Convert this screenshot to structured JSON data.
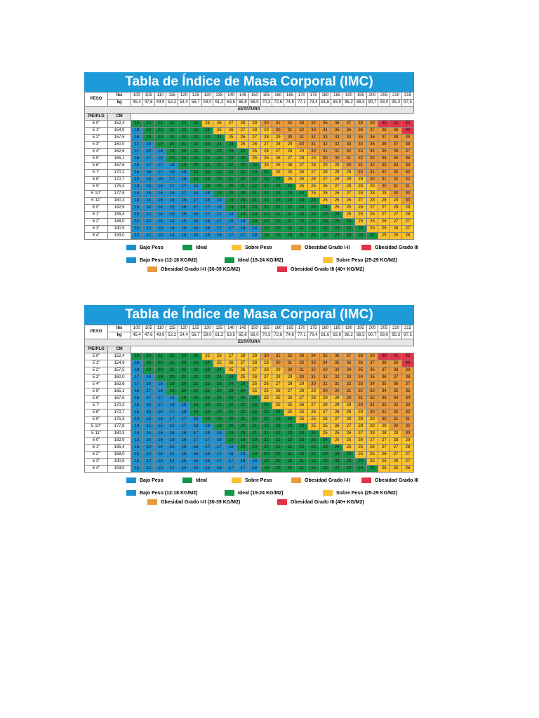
{
  "title": "Tabla de Índice de Masa Corporal (IMC)",
  "peso_label": "PESO",
  "lbs_label": "lbs",
  "kg_label": "kg",
  "estatura_label": "ESTATURA",
  "pie_label": "PIE/PLG",
  "cm_label": "CM",
  "lbs": [
    "100",
    "105",
    "110",
    "115",
    "120",
    "125",
    "130",
    "135",
    "140",
    "145",
    "150",
    "155",
    "160",
    "165",
    "170",
    "175",
    "180",
    "185",
    "190",
    "195",
    "200",
    "205",
    "210",
    "215"
  ],
  "kg": [
    "45,4",
    "47,6",
    "49,9",
    "52,2",
    "54,4",
    "56,7",
    "59,0",
    "61,2",
    "63,5",
    "65,8",
    "68,0",
    "70,3",
    "72,6",
    "74,8",
    "77,1",
    "79,4",
    "81,6",
    "83,9",
    "86,2",
    "88,5",
    "90,7",
    "93,0",
    "95,3",
    "97,5"
  ],
  "rows": [
    {
      "pie": "5´0\"",
      "cm": "152,4",
      "values": [
        19,
        20,
        21,
        22,
        23,
        24,
        25,
        26,
        27,
        28,
        29,
        30,
        31,
        32,
        33,
        34,
        35,
        36,
        37,
        38,
        39,
        40,
        41,
        42
      ]
    },
    {
      "pie": "5´1\"",
      "cm": "154,9",
      "values": [
        18,
        19,
        20,
        21,
        22,
        23,
        24,
        25,
        26,
        27,
        28,
        29,
        30,
        31,
        32,
        33,
        34,
        35,
        36,
        36,
        37,
        38,
        39,
        40
      ]
    },
    {
      "pie": "5´2\"",
      "cm": "157,5",
      "values": [
        18,
        19,
        20,
        21,
        22,
        22,
        23,
        24,
        25,
        26,
        27,
        28,
        29,
        30,
        31,
        32,
        33,
        33,
        34,
        35,
        36,
        37,
        38,
        39
      ]
    },
    {
      "pie": "5´3\"",
      "cm": "160,0",
      "values": [
        17,
        18,
        19,
        20,
        21,
        22,
        23,
        24,
        24,
        25,
        26,
        27,
        28,
        29,
        30,
        31,
        32,
        32,
        33,
        34,
        35,
        36,
        37,
        38
      ]
    },
    {
      "pie": "5´4\"",
      "cm": "162,6",
      "values": [
        17,
        18,
        18,
        19,
        20,
        21,
        22,
        23,
        24,
        24,
        25,
        26,
        27,
        28,
        29,
        30,
        31,
        31,
        32,
        33,
        34,
        35,
        36,
        37
      ]
    },
    {
      "pie": "5´5\"",
      "cm": "165,1",
      "values": [
        16,
        17,
        18,
        19,
        20,
        20,
        21,
        22,
        23,
        24,
        25,
        25,
        26,
        27,
        28,
        29,
        30,
        30,
        31,
        32,
        33,
        34,
        35,
        35
      ]
    },
    {
      "pie": "5´6\"",
      "cm": "167,6",
      "values": [
        16,
        17,
        17,
        18,
        19,
        20,
        21,
        21,
        22,
        23,
        24,
        25,
        25,
        26,
        27,
        28,
        29,
        29,
        30,
        31,
        32,
        33,
        34,
        34
      ]
    },
    {
      "pie": "5´7\"",
      "cm": "170,2",
      "values": [
        15,
        16,
        17,
        18,
        18,
        19,
        20,
        21,
        22,
        22,
        23,
        24,
        25,
        25,
        26,
        27,
        28,
        29,
        29,
        30,
        31,
        32,
        32,
        33
      ]
    },
    {
      "pie": "5´8\"",
      "cm": "172,7",
      "values": [
        15,
        16,
        16,
        17,
        18,
        19,
        19,
        20,
        21,
        22,
        22,
        23,
        24,
        25,
        25,
        26,
        27,
        28,
        28,
        29,
        30,
        31,
        32,
        32
      ]
    },
    {
      "pie": "5´9\"",
      "cm": "175,3",
      "values": [
        14,
        15,
        16,
        17,
        17,
        18,
        19,
        20,
        20,
        21,
        22,
        22,
        23,
        24,
        25,
        25,
        26,
        27,
        28,
        28,
        29,
        30,
        31,
        31
      ]
    },
    {
      "pie": "5´10\"",
      "cm": "177,8",
      "values": [
        14,
        15,
        15,
        16,
        17,
        18,
        18,
        19,
        20,
        20,
        21,
        22,
        23,
        23,
        24,
        25,
        25,
        26,
        27,
        28,
        28,
        29,
        30,
        30
      ]
    },
    {
      "pie": "5´11\"",
      "cm": "180,3",
      "values": [
        14,
        14,
        15,
        16,
        16,
        17,
        18,
        18,
        19,
        20,
        21,
        21,
        22,
        23,
        23,
        24,
        25,
        25,
        26,
        27,
        28,
        28,
        29,
        30
      ]
    },
    {
      "pie": "6´0\"",
      "cm": "182,9",
      "values": [
        13,
        14,
        14,
        15,
        16,
        17,
        17,
        18,
        19,
        19,
        20,
        21,
        21,
        22,
        23,
        23,
        24,
        25,
        25,
        26,
        27,
        27,
        28,
        29
      ]
    },
    {
      "pie": "6´1\"",
      "cm": "185,4",
      "values": [
        13,
        13,
        14,
        15,
        15,
        16,
        17,
        17,
        18,
        19,
        19,
        20,
        21,
        21,
        22,
        23,
        23,
        24,
        25,
        25,
        26,
        27,
        27,
        28
      ]
    },
    {
      "pie": "6´2\"",
      "cm": "188,0",
      "values": [
        12,
        13,
        14,
        14,
        15,
        16,
        16,
        17,
        18,
        18,
        19,
        20,
        20,
        21,
        22,
        22,
        23,
        23,
        24,
        25,
        25,
        26,
        27,
        27
      ]
    },
    {
      "pie": "6´3\"",
      "cm": "190,5",
      "values": [
        12,
        13,
        13,
        14,
        15,
        15,
        16,
        17,
        17,
        18,
        18,
        19,
        20,
        20,
        21,
        22,
        22,
        23,
        23,
        24,
        25,
        25,
        26,
        27
      ]
    },
    {
      "pie": "6´4\"",
      "cm": "193,0",
      "values": [
        12,
        12,
        13,
        14,
        14,
        15,
        15,
        16,
        17,
        17,
        18,
        19,
        19,
        20,
        21,
        21,
        22,
        22,
        23,
        23,
        24,
        25,
        25,
        26
      ]
    }
  ],
  "legend": {
    "row1": [
      "Bajo Peso",
      "Ideal",
      "Sobre Peso",
      "Obesidad Grado I-II",
      "Obesidad Grado III"
    ],
    "row2": [
      "Bajo Peso (12-18 KG/M2)",
      "Ideal (19-24 KG/M2)",
      "Sobre Peso (25-29 KG/M2)"
    ],
    "row3": [
      "Obesidad Grado I-II (30-39 KG/M2)",
      "Obesidad Grado III (40+ KG/M2)"
    ]
  },
  "colors": {
    "header": "#1d9ad7",
    "bajo": "#1e8fce",
    "ideal": "#119548",
    "sobre": "#f9c22e",
    "obesidad": "#e89a3c",
    "obesidad3": "#e1344a"
  }
}
